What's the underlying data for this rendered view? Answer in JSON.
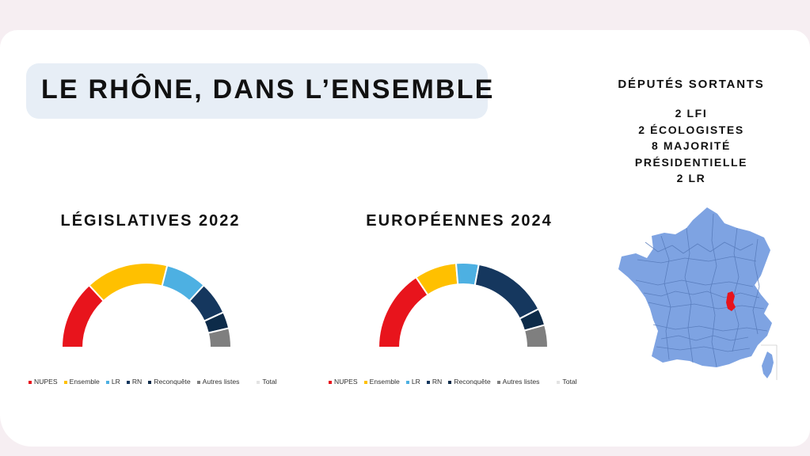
{
  "page": {
    "title": "LE RHÔNE, DANS L’ENSEMBLE"
  },
  "deputes": {
    "title": "DÉPUTÉS SORTANTS",
    "items": [
      "2 LFI",
      "2 ÉCOLOGISTES",
      "8 MAJORITÉ",
      "PRÉSIDENTIELLE",
      "2 LR"
    ]
  },
  "colors": {
    "NUPES": "#e8141c",
    "Ensemble": "#ffc000",
    "LR": "#4db0e2",
    "RN": "#15375e",
    "Reconquete": "#0d2b49",
    "Autres": "#7f7f7f",
    "Total": "#e3e3e3",
    "map_fill": "#7ea3e2",
    "map_highlight": "#e8141c"
  },
  "chart_data": [
    {
      "type": "pie",
      "title": "LÉGISLATIVES 2022",
      "shape": "half-donut",
      "categories": [
        "NUPES",
        "Ensemble",
        "LR",
        "RN",
        "Reconquête",
        "Autres listes"
      ],
      "values": [
        25,
        30,
        15,
        12,
        6,
        7
      ],
      "legend": [
        "NUPES",
        "Ensemble",
        "LR",
        "RN",
        "Reconquête",
        "Autres listes",
        "Total"
      ],
      "legend_position": "bottom"
    },
    {
      "type": "pie",
      "title": "EUROPÉENNES 2024",
      "shape": "half-donut",
      "categories": [
        "NUPES",
        "Ensemble",
        "LR",
        "RN",
        "Reconquête",
        "Autres listes"
      ],
      "values": [
        29,
        15,
        8,
        27,
        6,
        8
      ],
      "legend": [
        "NUPES",
        "Ensemble",
        "LR",
        "RN",
        "Reconquête",
        "Autres listes",
        "Total"
      ],
      "legend_position": "bottom"
    }
  ],
  "map": {
    "icon": "france-departments-map-icon",
    "highlighted": "Rhône"
  }
}
